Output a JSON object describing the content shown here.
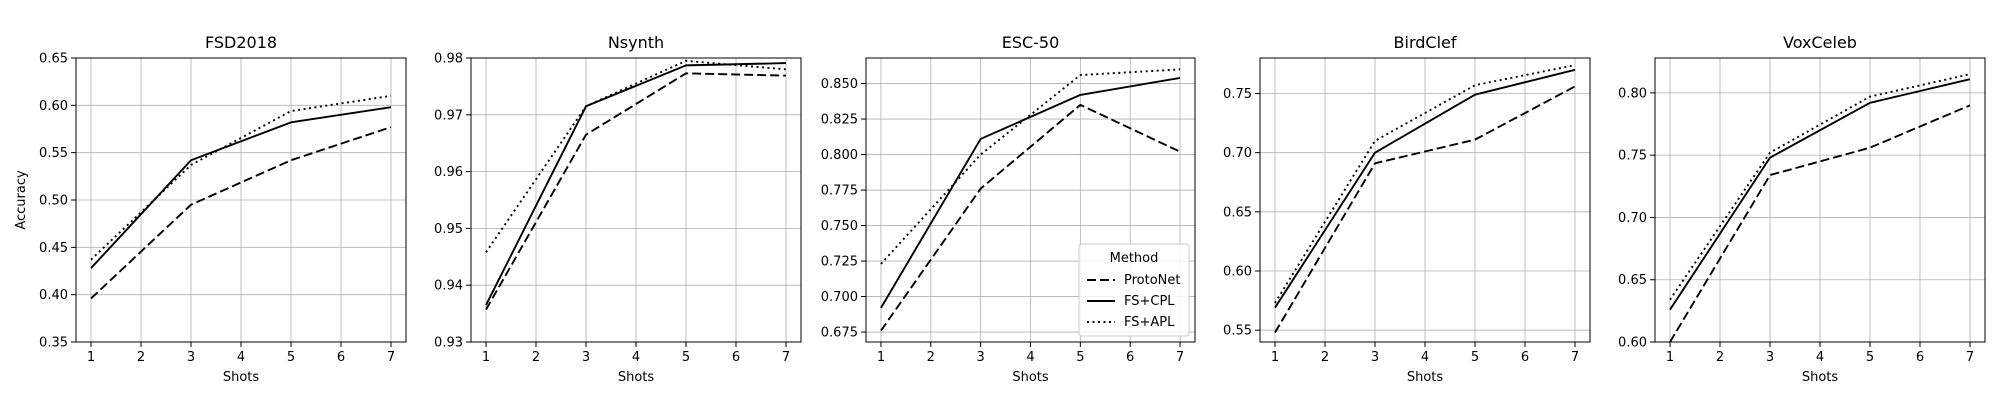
{
  "chart_data": [
    {
      "type": "line",
      "title": "FSD2018",
      "xlabel": "Shots",
      "ylabel": "Accuracy",
      "x": [
        1,
        3,
        5,
        7
      ],
      "xticks": [
        1,
        2,
        3,
        4,
        5,
        6,
        7
      ],
      "xlim": [
        0.7,
        7.3
      ],
      "ylim": [
        0.35,
        0.65
      ],
      "yticks": [
        0.35,
        0.4,
        0.45,
        0.5,
        0.55,
        0.6,
        0.65
      ],
      "ytick_labels": [
        "0.35",
        "0.40",
        "0.45",
        "0.50",
        "0.55",
        "0.60",
        "0.65"
      ],
      "grid": true,
      "series": [
        {
          "name": "ProtoNet",
          "values": [
            0.396,
            0.495,
            0.542,
            0.577
          ]
        },
        {
          "name": "FS+CPL",
          "values": [
            0.428,
            0.542,
            0.582,
            0.598
          ]
        },
        {
          "name": "FS+APL",
          "values": [
            0.437,
            0.537,
            0.594,
            0.61
          ]
        }
      ]
    },
    {
      "type": "line",
      "title": "Nsynth",
      "xlabel": "Shots",
      "ylabel": "",
      "x": [
        1,
        3,
        5,
        7
      ],
      "xticks": [
        1,
        2,
        3,
        4,
        5,
        6,
        7
      ],
      "xlim": [
        0.7,
        7.3
      ],
      "ylim": [
        0.93,
        0.98
      ],
      "yticks": [
        0.93,
        0.94,
        0.95,
        0.96,
        0.97,
        0.98
      ],
      "ytick_labels": [
        "0.93",
        "0.94",
        "0.95",
        "0.96",
        "0.97",
        "0.98"
      ],
      "grid": true,
      "series": [
        {
          "name": "ProtoNet",
          "values": [
            0.9357,
            0.9665,
            0.9773,
            0.9769
          ]
        },
        {
          "name": "FS+CPL",
          "values": [
            0.9365,
            0.9715,
            0.9787,
            0.9791
          ]
        },
        {
          "name": "FS+APL",
          "values": [
            0.9458,
            0.9715,
            0.9795,
            0.978
          ]
        }
      ]
    },
    {
      "type": "line",
      "title": "ESC-50",
      "xlabel": "Shots",
      "ylabel": "",
      "x": [
        1,
        3,
        5,
        7
      ],
      "xticks": [
        1,
        2,
        3,
        4,
        5,
        6,
        7
      ],
      "xlim": [
        0.7,
        7.3
      ],
      "ylim": [
        0.668,
        0.868
      ],
      "yticks": [
        0.675,
        0.7,
        0.725,
        0.75,
        0.775,
        0.8,
        0.825,
        0.85
      ],
      "ytick_labels": [
        "0.675",
        "0.700",
        "0.725",
        "0.750",
        "0.775",
        "0.800",
        "0.825",
        "0.850"
      ],
      "grid": true,
      "legend_position": "lower-right",
      "legend_title": "Method",
      "series": [
        {
          "name": "ProtoNet",
          "values": [
            0.676,
            0.776,
            0.835,
            0.802
          ]
        },
        {
          "name": "FS+CPL",
          "values": [
            0.692,
            0.811,
            0.842,
            0.854
          ]
        },
        {
          "name": "FS+APL",
          "values": [
            0.723,
            0.8,
            0.856,
            0.86
          ]
        }
      ]
    },
    {
      "type": "line",
      "title": "BirdClef",
      "xlabel": "Shots",
      "ylabel": "",
      "x": [
        1,
        3,
        5,
        7
      ],
      "xticks": [
        1,
        2,
        3,
        4,
        5,
        6,
        7
      ],
      "xlim": [
        0.7,
        7.3
      ],
      "ylim": [
        0.54,
        0.78
      ],
      "yticks": [
        0.55,
        0.6,
        0.65,
        0.7,
        0.75
      ],
      "ytick_labels": [
        "0.55",
        "0.60",
        "0.65",
        "0.70",
        "0.75"
      ],
      "grid": true,
      "series": [
        {
          "name": "ProtoNet",
          "values": [
            0.548,
            0.691,
            0.711,
            0.756
          ]
        },
        {
          "name": "FS+CPL",
          "values": [
            0.569,
            0.7,
            0.749,
            0.77
          ]
        },
        {
          "name": "FS+APL",
          "values": [
            0.573,
            0.71,
            0.757,
            0.774
          ]
        }
      ]
    },
    {
      "type": "line",
      "title": "VoxCeleb",
      "xlabel": "Shots",
      "ylabel": "",
      "x": [
        1,
        3,
        5,
        7
      ],
      "xticks": [
        1,
        2,
        3,
        4,
        5,
        6,
        7
      ],
      "xlim": [
        0.7,
        7.3
      ],
      "ylim": [
        0.6,
        0.828
      ],
      "yticks": [
        0.6,
        0.65,
        0.7,
        0.75,
        0.8
      ],
      "ytick_labels": [
        "0.60",
        "0.65",
        "0.70",
        "0.75",
        "0.80"
      ],
      "grid": true,
      "series": [
        {
          "name": "ProtoNet",
          "values": [
            0.6,
            0.734,
            0.756,
            0.79
          ]
        },
        {
          "name": "FS+CPL",
          "values": [
            0.626,
            0.748,
            0.792,
            0.811
          ]
        },
        {
          "name": "FS+APL",
          "values": [
            0.634,
            0.752,
            0.797,
            0.815
          ]
        }
      ]
    }
  ],
  "series_styles": [
    {
      "name": "ProtoNet",
      "color": "#000000",
      "dash": "dashed"
    },
    {
      "name": "FS+CPL",
      "color": "#000000",
      "dash": "solid"
    },
    {
      "name": "FS+APL",
      "color": "#000000",
      "dash": "dotted"
    }
  ],
  "colors": {
    "grid": "#b0b0b0",
    "axis": "#000000",
    "background": "#ffffff"
  }
}
